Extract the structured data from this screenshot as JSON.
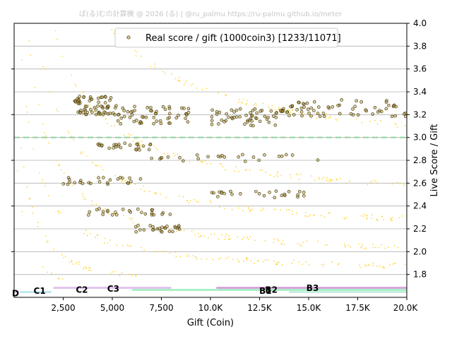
{
  "watermark": "ぱ(る)むの計算機 @ 2026 (る) | @ru_palmu  https://ru-palmu.github.io/meter",
  "chart_data": {
    "type": "scatter",
    "xlabel": "Gift (Coin)",
    "ylabel": "Live Score / Gift",
    "xlim": [
      0,
      20000
    ],
    "ylim": [
      1.6,
      4.0
    ],
    "y_axis_side": "right",
    "x_ticks": [
      {
        "value": 2500,
        "label": "2,500"
      },
      {
        "value": 5000,
        "label": "5,000"
      },
      {
        "value": 7500,
        "label": "7,500"
      },
      {
        "value": 10000,
        "label": "10.0K"
      },
      {
        "value": 12500,
        "label": "12.5K"
      },
      {
        "value": 15000,
        "label": "15.0K"
      },
      {
        "value": 17500,
        "label": "17.5K"
      },
      {
        "value": 20000,
        "label": "20.0K"
      }
    ],
    "y_ticks": [
      {
        "value": 1.8,
        "label": "1.8"
      },
      {
        "value": 2.0,
        "label": "2.0"
      },
      {
        "value": 2.2,
        "label": "2.2"
      },
      {
        "value": 2.4,
        "label": "2.4"
      },
      {
        "value": 2.6,
        "label": "2.6"
      },
      {
        "value": 2.8,
        "label": "2.8"
      },
      {
        "value": 3.0,
        "label": "3.0"
      },
      {
        "value": 3.2,
        "label": "3.2"
      },
      {
        "value": 3.4,
        "label": "3.4"
      },
      {
        "value": 3.6,
        "label": "3.6"
      },
      {
        "value": 3.8,
        "label": "3.8"
      },
      {
        "value": 4.0,
        "label": "4.0"
      }
    ],
    "grid": "horizontal",
    "reference_line": {
      "y": 3.0,
      "color": "#8fd19e",
      "style": "dashed"
    },
    "legend": {
      "label": "Real score / gift (1000coin3) [1233/11071]",
      "position": "top-center"
    },
    "colors": {
      "background_points": "#ffc800",
      "real_points_fill": "#b09030",
      "real_points_edge": "#3a3000"
    },
    "background_curves": [
      {
        "a": 6200,
        "b": 2.8
      },
      {
        "a": 3800,
        "b": 2.4
      },
      {
        "a": 2800,
        "b": 2.15
      },
      {
        "a": 2200,
        "b": 1.93
      },
      {
        "a": 1500,
        "b": 1.8
      },
      {
        "a": 1000,
        "b": 1.62
      },
      {
        "a": 700,
        "b": 1.5
      }
    ],
    "real_score_clusters": [
      {
        "x": [
          3000,
          5000
        ],
        "y": 3.28
      },
      {
        "x": [
          5000,
          9000
        ],
        "y": 3.2
      },
      {
        "x": [
          10000,
          14000
        ],
        "y": 3.18
      },
      {
        "x": [
          14000,
          20000
        ],
        "y": 3.25
      },
      {
        "x": [
          4000,
          7000
        ],
        "y": 2.92
      },
      {
        "x": [
          7000,
          16000
        ],
        "y": 2.82
      },
      {
        "x": [
          2500,
          6500
        ],
        "y": 2.62
      },
      {
        "x": [
          10000,
          15000
        ],
        "y": 2.5
      },
      {
        "x": [
          3500,
          8000
        ],
        "y": 2.35
      },
      {
        "x": [
          6000,
          8500
        ],
        "y": 2.2
      }
    ],
    "rank_bands": [
      {
        "label": "D",
        "x_start": 0,
        "x_end": 250,
        "level": 0,
        "color": "#d8c8ec"
      },
      {
        "label": "C1",
        "x_start": 300,
        "x_end": 1900,
        "level": 0,
        "color": "#bfe7ee"
      },
      {
        "label": "C2",
        "x_start": 2000,
        "x_end": 5800,
        "level": 2,
        "color": "#e2c3ee"
      },
      {
        "label": "C3",
        "x_start": 5800,
        "x_end": 8000,
        "level": 2,
        "color": "#e2c3ee"
      },
      {
        "label": "B1",
        "x_start": 6000,
        "x_end": 20000,
        "level": 1,
        "color": "#aaf0c8"
      },
      {
        "label": "B2",
        "x_start": 10300,
        "x_end": 20000,
        "level": 2,
        "color": "#d9a5dc"
      },
      {
        "label": "B3",
        "x_start": 14000,
        "x_end": 20000,
        "level": 0,
        "color": "#c8eee0"
      }
    ],
    "rank_label_positions": [
      {
        "label": "D",
        "x": 0,
        "y": 1.61
      },
      {
        "label": "C1",
        "x": 1300,
        "y": 1.63
      },
      {
        "label": "C2",
        "x": 3450,
        "y": 1.64
      },
      {
        "label": "C3",
        "x": 5050,
        "y": 1.65
      },
      {
        "label": "B1",
        "x": 12800,
        "y": 1.63
      },
      {
        "label": "B2",
        "x": 13100,
        "y": 1.64
      },
      {
        "label": "B3",
        "x": 15200,
        "y": 1.655
      }
    ]
  }
}
